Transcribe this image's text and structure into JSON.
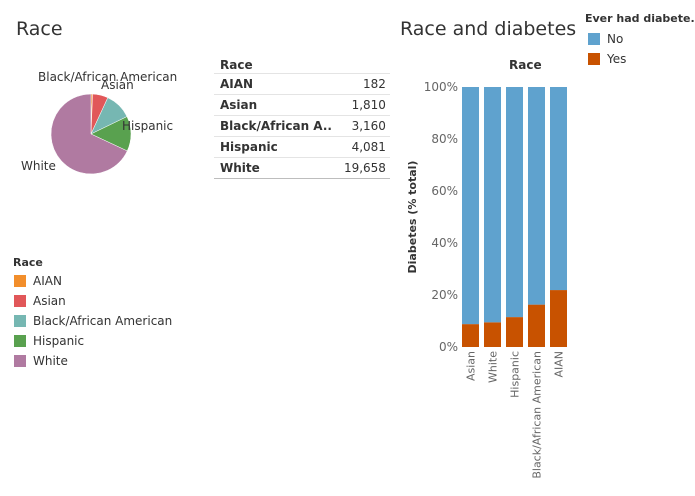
{
  "left_panel": {
    "title": "Race",
    "pie_labels": [
      "Black/African American",
      "Asian",
      "Hispanic",
      "White"
    ],
    "legend": {
      "title": "Race",
      "items": [
        {
          "label": "AIAN",
          "color": "#f28e2b"
        },
        {
          "label": "Asian",
          "color": "#e15759"
        },
        {
          "label": "Black/African American",
          "color": "#76b7b2"
        },
        {
          "label": "Hispanic",
          "color": "#59a14f"
        },
        {
          "label": "White",
          "color": "#b07aa1"
        }
      ]
    }
  },
  "table": {
    "header": "Race",
    "rows": [
      {
        "label": "AIAN",
        "value": "182"
      },
      {
        "label": "Asian",
        "value": "1,810"
      },
      {
        "label": "Black/African A..",
        "value": "3,160"
      },
      {
        "label": "Hispanic",
        "value": "4,081"
      },
      {
        "label": "White",
        "value": "19,658"
      }
    ]
  },
  "right_panel": {
    "title": "Race and diabetes",
    "column_header": "Race",
    "legend": {
      "title": "Ever had diabete..",
      "items": [
        {
          "label": "No",
          "color": "#5fa2ce"
        },
        {
          "label": "Yes",
          "color": "#c85200"
        }
      ]
    }
  },
  "chart_data": [
    {
      "type": "pie",
      "title": "Race",
      "categories": [
        "AIAN",
        "Asian",
        "Black/African American",
        "Hispanic",
        "White"
      ],
      "values": [
        182,
        1810,
        3160,
        4081,
        19658
      ],
      "colors": [
        "#f28e2b",
        "#e15759",
        "#76b7b2",
        "#59a14f",
        "#b07aa1"
      ],
      "legend_position": "bottom-left"
    },
    {
      "type": "bar",
      "stacked": true,
      "title": "Race and diabetes",
      "xlabel": "",
      "ylabel": "Diabetes (% total)",
      "categories": [
        "Asian",
        "White",
        "Hispanic",
        "Black/African American",
        "AIAN"
      ],
      "series": [
        {
          "name": "Yes",
          "color": "#c85200",
          "values": [
            8.8,
            9.5,
            11.5,
            16.3,
            21.9
          ]
        },
        {
          "name": "No",
          "color": "#5fa2ce",
          "values": [
            91.2,
            90.5,
            88.5,
            83.7,
            78.1
          ]
        }
      ],
      "ylim": [
        0,
        100
      ],
      "yticks": [
        "0%",
        "20%",
        "40%",
        "60%",
        "80%",
        "100%"
      ],
      "legend_position": "top-right"
    }
  ]
}
